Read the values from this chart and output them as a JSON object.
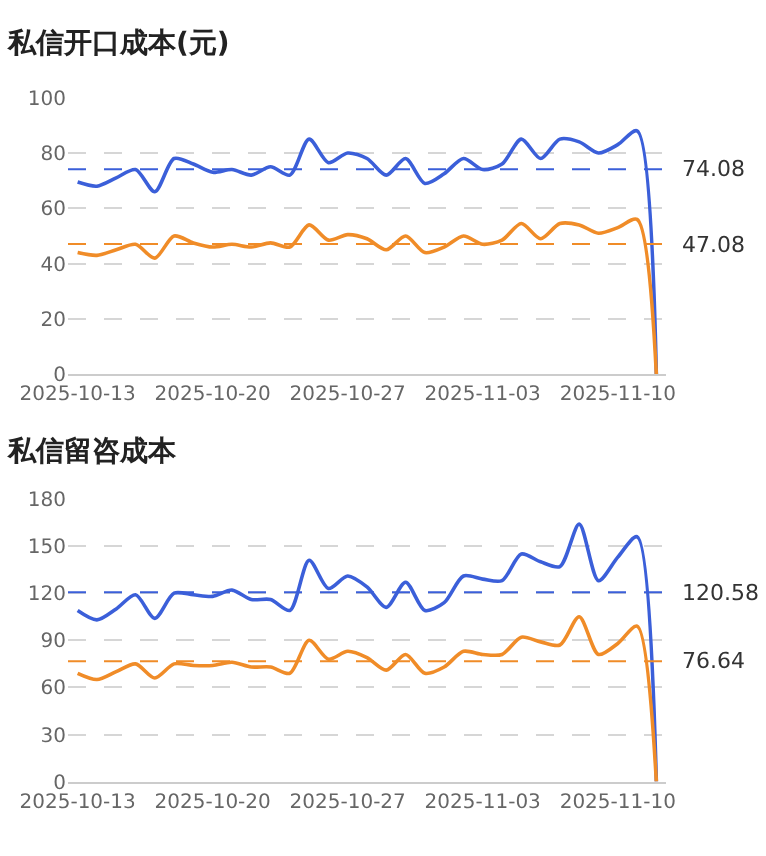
{
  "chart_data": [
    {
      "type": "line",
      "title": "私信开口成本(元)",
      "x": [
        "2025-10-13",
        "2025-10-14",
        "2025-10-15",
        "2025-10-16",
        "2025-10-17",
        "2025-10-18",
        "2025-10-19",
        "2025-10-20",
        "2025-10-21",
        "2025-10-22",
        "2025-10-23",
        "2025-10-24",
        "2025-10-25",
        "2025-10-26",
        "2025-10-27",
        "2025-10-28",
        "2025-10-29",
        "2025-10-30",
        "2025-10-31",
        "2025-11-01",
        "2025-11-02",
        "2025-11-03",
        "2025-11-04",
        "2025-11-05",
        "2025-11-06",
        "2025-11-07",
        "2025-11-08",
        "2025-11-09",
        "2025-11-10",
        "2025-11-11",
        "2025-11-12"
      ],
      "series": [
        {
          "color": "#3b5fd9",
          "values": [
            69.5,
            68,
            71,
            74,
            66,
            78,
            76,
            73,
            74,
            72,
            75,
            72,
            85,
            76.5,
            80,
            78,
            72,
            78,
            69,
            72.5,
            78,
            74,
            76,
            85,
            78,
            85,
            84,
            80,
            83,
            88,
            0
          ]
        },
        {
          "color": "#f08c28",
          "values": [
            44,
            43,
            45,
            47,
            42,
            50,
            47.5,
            46,
            47,
            46,
            47.5,
            46,
            54,
            48.5,
            50.5,
            49,
            45,
            50,
            44,
            46,
            50,
            47,
            48.5,
            54.5,
            49,
            54.5,
            54,
            51,
            53,
            56,
            0
          ]
        }
      ],
      "xlim": [
        "2025-10-12T12:00",
        "2025-11-12T12:00"
      ],
      "xticks": [
        "2025-10-13",
        "2025-10-20",
        "2025-10-27",
        "2025-11-03",
        "2025-11-10"
      ],
      "ylim": [
        0,
        100
      ],
      "yticks": [
        0,
        20,
        40,
        60,
        80,
        100
      ],
      "ref_lines": [
        {
          "axis": "y",
          "value": 74.08,
          "label": "74.08",
          "color": "#3b5fd9",
          "line_style": "dashed"
        },
        {
          "axis": "y",
          "value": 47.08,
          "label": "47.08",
          "color": "#f08c28",
          "line_style": "dashed"
        }
      ],
      "grid": "y",
      "legend": false,
      "marker": "none",
      "line_style": "solid"
    },
    {
      "type": "line",
      "title": "私信留咨成本",
      "x": [
        "2025-10-13",
        "2025-10-14",
        "2025-10-15",
        "2025-10-16",
        "2025-10-17",
        "2025-10-18",
        "2025-10-19",
        "2025-10-20",
        "2025-10-21",
        "2025-10-22",
        "2025-10-23",
        "2025-10-24",
        "2025-10-25",
        "2025-10-26",
        "2025-10-27",
        "2025-10-28",
        "2025-10-29",
        "2025-10-30",
        "2025-10-31",
        "2025-11-01",
        "2025-11-02",
        "2025-11-03",
        "2025-11-04",
        "2025-11-05",
        "2025-11-06",
        "2025-11-07",
        "2025-11-08",
        "2025-11-09",
        "2025-11-10",
        "2025-11-11",
        "2025-11-12"
      ],
      "series": [
        {
          "color": "#3b5fd9",
          "values": [
            109,
            103,
            110,
            119,
            104,
            120,
            119,
            118,
            122,
            116,
            116,
            109,
            141,
            123,
            131,
            124,
            111,
            127,
            109,
            114,
            131,
            129,
            128,
            145,
            140,
            137,
            164,
            128,
            143,
            156,
            0
          ]
        },
        {
          "color": "#f08c28",
          "values": [
            69,
            65,
            70,
            75,
            66,
            75,
            74,
            74,
            76,
            73,
            73,
            69,
            90,
            78,
            83,
            79,
            71,
            81,
            69,
            73,
            83,
            81,
            81,
            92,
            89,
            87,
            105,
            81,
            88,
            99,
            0
          ]
        }
      ],
      "xlim": [
        "2025-10-12T12:00",
        "2025-11-12T12:00"
      ],
      "xticks": [
        "2025-10-13",
        "2025-10-20",
        "2025-10-27",
        "2025-11-03",
        "2025-11-10"
      ],
      "ylim": [
        0,
        180
      ],
      "yticks": [
        0,
        30,
        60,
        90,
        120,
        150,
        180
      ],
      "ref_lines": [
        {
          "axis": "y",
          "value": 120.58,
          "label": "120.58",
          "color": "#3b5fd9",
          "line_style": "dashed"
        },
        {
          "axis": "y",
          "value": 76.64,
          "label": "76.64",
          "color": "#f08c28",
          "line_style": "dashed"
        }
      ],
      "grid": "y",
      "legend": false,
      "marker": "none",
      "line_style": "solid"
    }
  ]
}
